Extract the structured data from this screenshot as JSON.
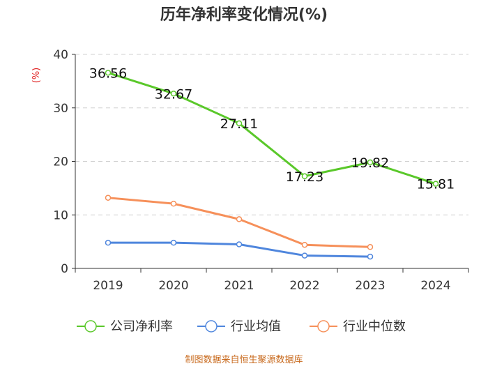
{
  "chart_data": {
    "type": "line",
    "title": "历年净利率变化情况(%)",
    "ylabel": "(%)",
    "ylim": [
      0,
      40
    ],
    "yticks": [
      0,
      10,
      20,
      30,
      40
    ],
    "categories": [
      "2019",
      "2020",
      "2021",
      "2022",
      "2023",
      "2024"
    ],
    "series": [
      {
        "name": "公司净利率",
        "color": "#5ac82a",
        "values": [
          36.56,
          32.67,
          27.11,
          17.23,
          19.82,
          15.81
        ],
        "labels": [
          "36.56",
          "32.67",
          "27.11",
          "17.23",
          "19.82",
          "15.81"
        ]
      },
      {
        "name": "行业均值",
        "color": "#4f86dd",
        "values": [
          4.8,
          4.8,
          4.5,
          2.4,
          2.2,
          null
        ]
      },
      {
        "name": "行业中位数",
        "color": "#f6905a",
        "values": [
          13.2,
          12.1,
          9.2,
          4.4,
          4.0,
          null
        ]
      }
    ],
    "grid": true,
    "legend": "bottom"
  },
  "source": "制图数据来自恒生聚源数据库"
}
